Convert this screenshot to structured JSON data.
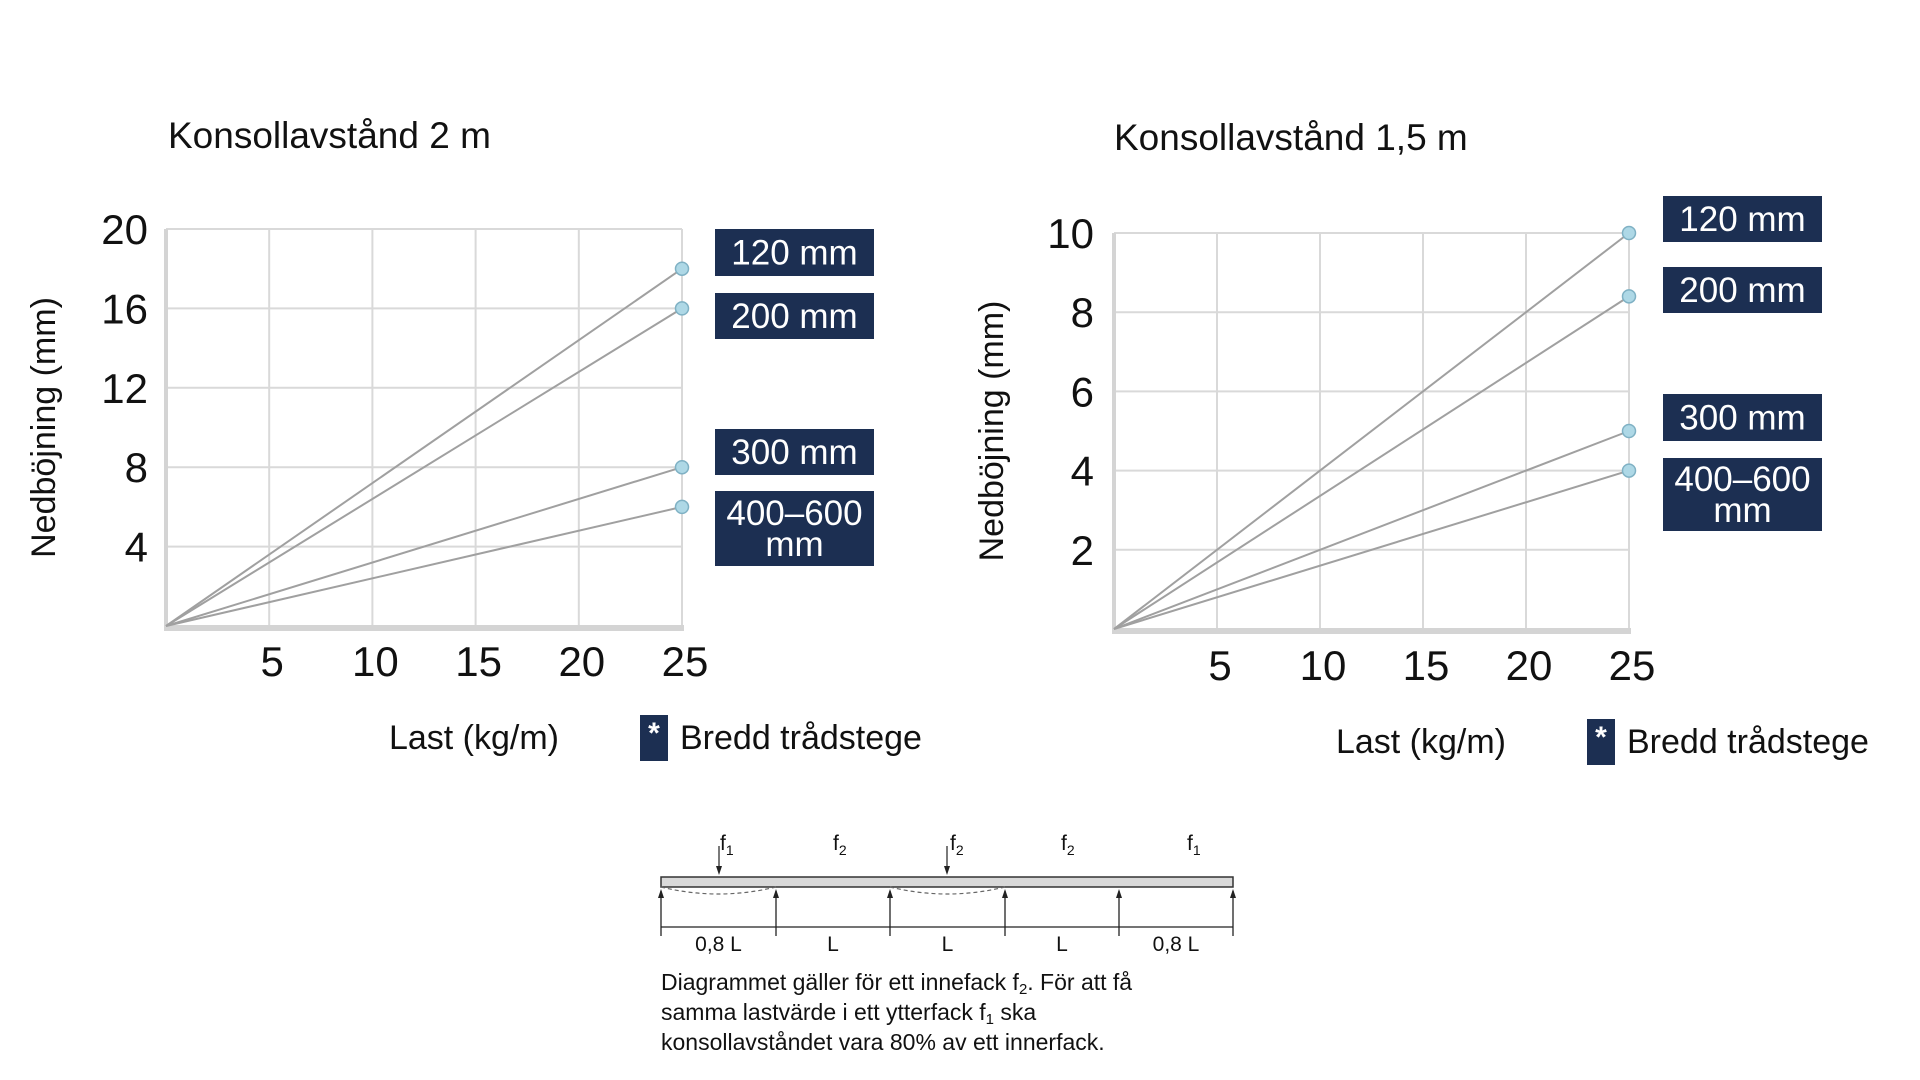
{
  "chart_data": [
    {
      "type": "line",
      "title": "Konsollavstånd 2 m",
      "xlabel": "Last (kg/m)",
      "ylabel": "Nedböjning (mm)",
      "xlim": [
        0,
        25
      ],
      "ylim": [
        0,
        20
      ],
      "x_ticks": [
        5,
        10,
        15,
        20,
        25
      ],
      "y_ticks": [
        4,
        8,
        12,
        16,
        20
      ],
      "grid": true,
      "legend_placement": "right",
      "series": [
        {
          "name": "120 mm",
          "label_lines": [
            "120 mm"
          ],
          "points": [
            [
              0,
              0
            ],
            [
              25,
              18
            ]
          ]
        },
        {
          "name": "200 mm",
          "label_lines": [
            "200 mm"
          ],
          "points": [
            [
              0,
              0
            ],
            [
              25,
              16
            ]
          ]
        },
        {
          "name": "300 mm",
          "label_lines": [
            "300 mm"
          ],
          "points": [
            [
              0,
              0
            ],
            [
              25,
              8
            ]
          ]
        },
        {
          "name": "400–600 mm",
          "label_lines": [
            "400–600",
            "mm"
          ],
          "points": [
            [
              0,
              0
            ],
            [
              25,
              6
            ]
          ]
        }
      ],
      "footnote": {
        "marker": "*",
        "text": "Bredd trådstege"
      }
    },
    {
      "type": "line",
      "title": "Konsollavstånd 1,5 m",
      "xlabel": "Last (kg/m)",
      "ylabel": "Nedböjning (mm)",
      "xlim": [
        0,
        25
      ],
      "ylim": [
        0,
        10
      ],
      "x_ticks": [
        5,
        10,
        15,
        20,
        25
      ],
      "y_ticks": [
        2,
        4,
        6,
        8,
        10
      ],
      "grid": true,
      "legend_placement": "right",
      "series": [
        {
          "name": "120 mm",
          "label_lines": [
            "120 mm"
          ],
          "points": [
            [
              0,
              0
            ],
            [
              25,
              10
            ]
          ]
        },
        {
          "name": "200 mm",
          "label_lines": [
            "200 mm"
          ],
          "points": [
            [
              0,
              0
            ],
            [
              25,
              8.4
            ]
          ]
        },
        {
          "name": "300 mm",
          "label_lines": [
            "300 mm"
          ],
          "points": [
            [
              0,
              0
            ],
            [
              25,
              5
            ]
          ]
        },
        {
          "name": "400–600 mm",
          "label_lines": [
            "400–600",
            "mm"
          ],
          "points": [
            [
              0,
              0
            ],
            [
              25,
              4
            ]
          ]
        }
      ],
      "footnote": {
        "marker": "*",
        "text": "Bredd trådstege"
      }
    }
  ],
  "colors": {
    "label_bg": "#1c2f52",
    "label_text": "#ffffff",
    "line": "#a0a0a0",
    "marker_fill": "#aed8e6",
    "marker_stroke": "#7fb1c4",
    "grid": "#d9d9d9"
  },
  "beam_diagram": {
    "loads": [
      "f1",
      "f2",
      "f2",
      "f2",
      "f1"
    ],
    "load_labels": [
      {
        "base": "f",
        "sub": "1"
      },
      {
        "base": "f",
        "sub": "2"
      },
      {
        "base": "f",
        "sub": "2"
      },
      {
        "base": "f",
        "sub": "2"
      },
      {
        "base": "f",
        "sub": "1"
      }
    ],
    "spans": [
      "0,8 L",
      "L",
      "L",
      "L",
      "0,8 L"
    ]
  },
  "note": {
    "line1_a": "Diagrammet gäller för ett innefack f",
    "line1_sub": "2",
    "line1_b": ". För att få",
    "line2_a": "samma lastvärde i ett ytterfack f",
    "line2_sub": "1",
    "line2_b": " ska",
    "line3": "konsollavståndet vara 80% av ett innerfack."
  }
}
